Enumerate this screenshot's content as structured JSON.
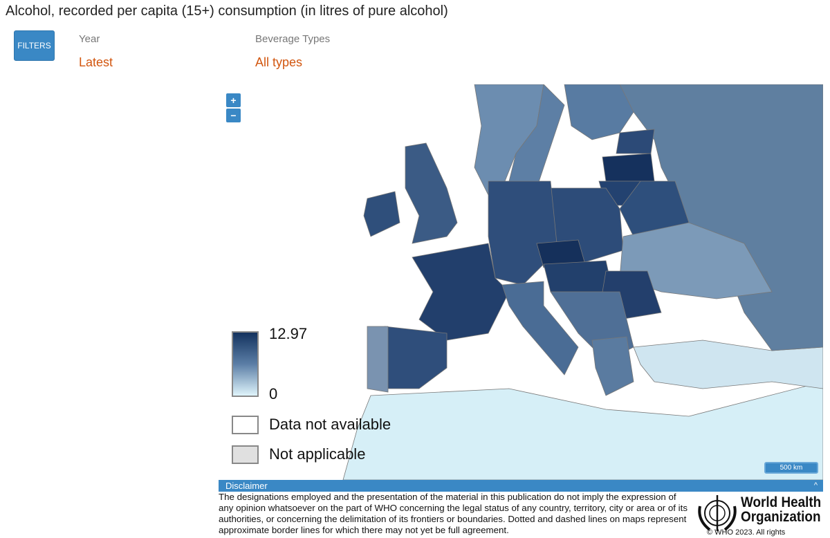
{
  "title": "Alcohol, recorded per capita (15+) consumption (in litres of pure alcohol)",
  "filters": {
    "button_label": "FILTERS",
    "year": {
      "label": "Year",
      "value": "Latest"
    },
    "beverage": {
      "label": "Beverage Types",
      "value": "All types"
    }
  },
  "map": {
    "zoom_in": "+",
    "zoom_out": "−",
    "legend": {
      "max": "12.97",
      "min": "0",
      "na_data": "Data not available",
      "na_applicable": "Not applicable"
    },
    "scale_label": "500 km",
    "colors": {
      "high": "#13325e",
      "mid": "#5b7ea6",
      "low": "#dff4fb",
      "not_applicable": "#e0e0e0"
    }
  },
  "disclaimer": {
    "title": "Disclaimer",
    "toggle": "^",
    "text": "The designations employed and the presentation of the material in this publication do not imply the expression of any opinion whatsoever on the part of WHO concerning the legal status of any country, territory, city or area or of its authorities, or concerning the delimitation of its frontiers or boundaries. Dotted and dashed lines on maps represent approximate border lines for which there may not yet be full agreement.",
    "org_name_1": "World Health",
    "org_name_2": "Organization",
    "copyright": "© WHO 2023. All rights"
  }
}
